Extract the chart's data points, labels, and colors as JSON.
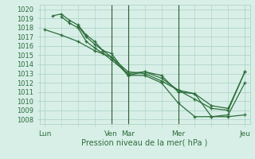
{
  "title": "",
  "xlabel": "Pression niveau de la mer( hPa )",
  "ylabel": "",
  "background_color": "#d8efe8",
  "grid_color": "#a8cfc0",
  "text_color": "#2d6e3a",
  "line_color": "#2d6e3a",
  "ylim": [
    1007.5,
    1020.5
  ],
  "yticks": [
    1008,
    1009,
    1010,
    1011,
    1012,
    1013,
    1014,
    1015,
    1016,
    1017,
    1018,
    1019,
    1020
  ],
  "xtick_labels": [
    "Lun",
    "Ven",
    "Mar",
    "Mer",
    "Jeu"
  ],
  "xtick_positions": [
    0,
    4,
    5,
    8,
    12
  ],
  "lines": [
    {
      "x": [
        0,
        1,
        2,
        3,
        4,
        5,
        6,
        7,
        8,
        9,
        10,
        11,
        12
      ],
      "y": [
        1017.8,
        1017.2,
        1016.5,
        1015.5,
        1014.8,
        1013.2,
        1013.0,
        1012.2,
        1011.2,
        1010.8,
        1009.5,
        1009.2,
        1013.2
      ]
    },
    {
      "x": [
        0.5,
        1,
        1.5,
        2,
        2.5,
        3,
        3.5,
        4,
        5,
        6,
        7,
        8,
        9,
        10,
        11,
        12
      ],
      "y": [
        1019.3,
        1019.5,
        1018.8,
        1018.3,
        1017.2,
        1016.5,
        1015.5,
        1015.2,
        1012.8,
        1013.2,
        1012.5,
        1011.2,
        1010.2,
        1009.2,
        1009.0,
        1013.2
      ]
    },
    {
      "x": [
        1,
        1.5,
        2,
        2.5,
        3,
        3.5,
        4,
        5,
        6,
        7,
        8,
        9,
        10,
        11,
        12
      ],
      "y": [
        1019.2,
        1018.5,
        1018.0,
        1016.5,
        1015.8,
        1015.2,
        1014.5,
        1013.0,
        1013.2,
        1012.8,
        1011.0,
        1010.8,
        1008.3,
        1008.3,
        1008.5
      ]
    },
    {
      "x": [
        2,
        2.5,
        3,
        3.5,
        4,
        5,
        6,
        7,
        8,
        9,
        10,
        11,
        12
      ],
      "y": [
        1018.2,
        1017.0,
        1016.2,
        1015.5,
        1014.8,
        1012.8,
        1012.8,
        1012.0,
        1009.8,
        1008.3,
        1008.3,
        1008.5,
        1012.0
      ]
    }
  ],
  "vlines": [
    4,
    5,
    8
  ],
  "vline_color": "#2a5a2a"
}
